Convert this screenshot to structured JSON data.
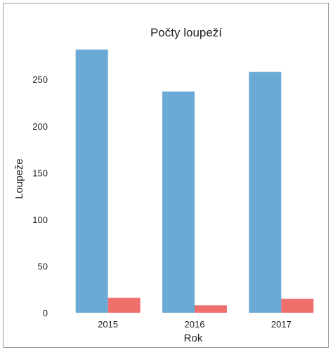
{
  "chart_data": {
    "type": "bar",
    "title": "Počty loupeží",
    "xlabel": "Rok",
    "ylabel": "Loupeže",
    "categories": [
      "2015",
      "2016",
      "2017"
    ],
    "series": [
      {
        "values": [
          282,
          237,
          258
        ],
        "color": "#6aaad5"
      },
      {
        "values": [
          16,
          8,
          15
        ],
        "color": "#ee6f6c"
      }
    ],
    "yticks": [
      0,
      50,
      100,
      150,
      200,
      250
    ],
    "ylim": [
      0,
      290
    ],
    "grid": false,
    "legend": "none"
  }
}
